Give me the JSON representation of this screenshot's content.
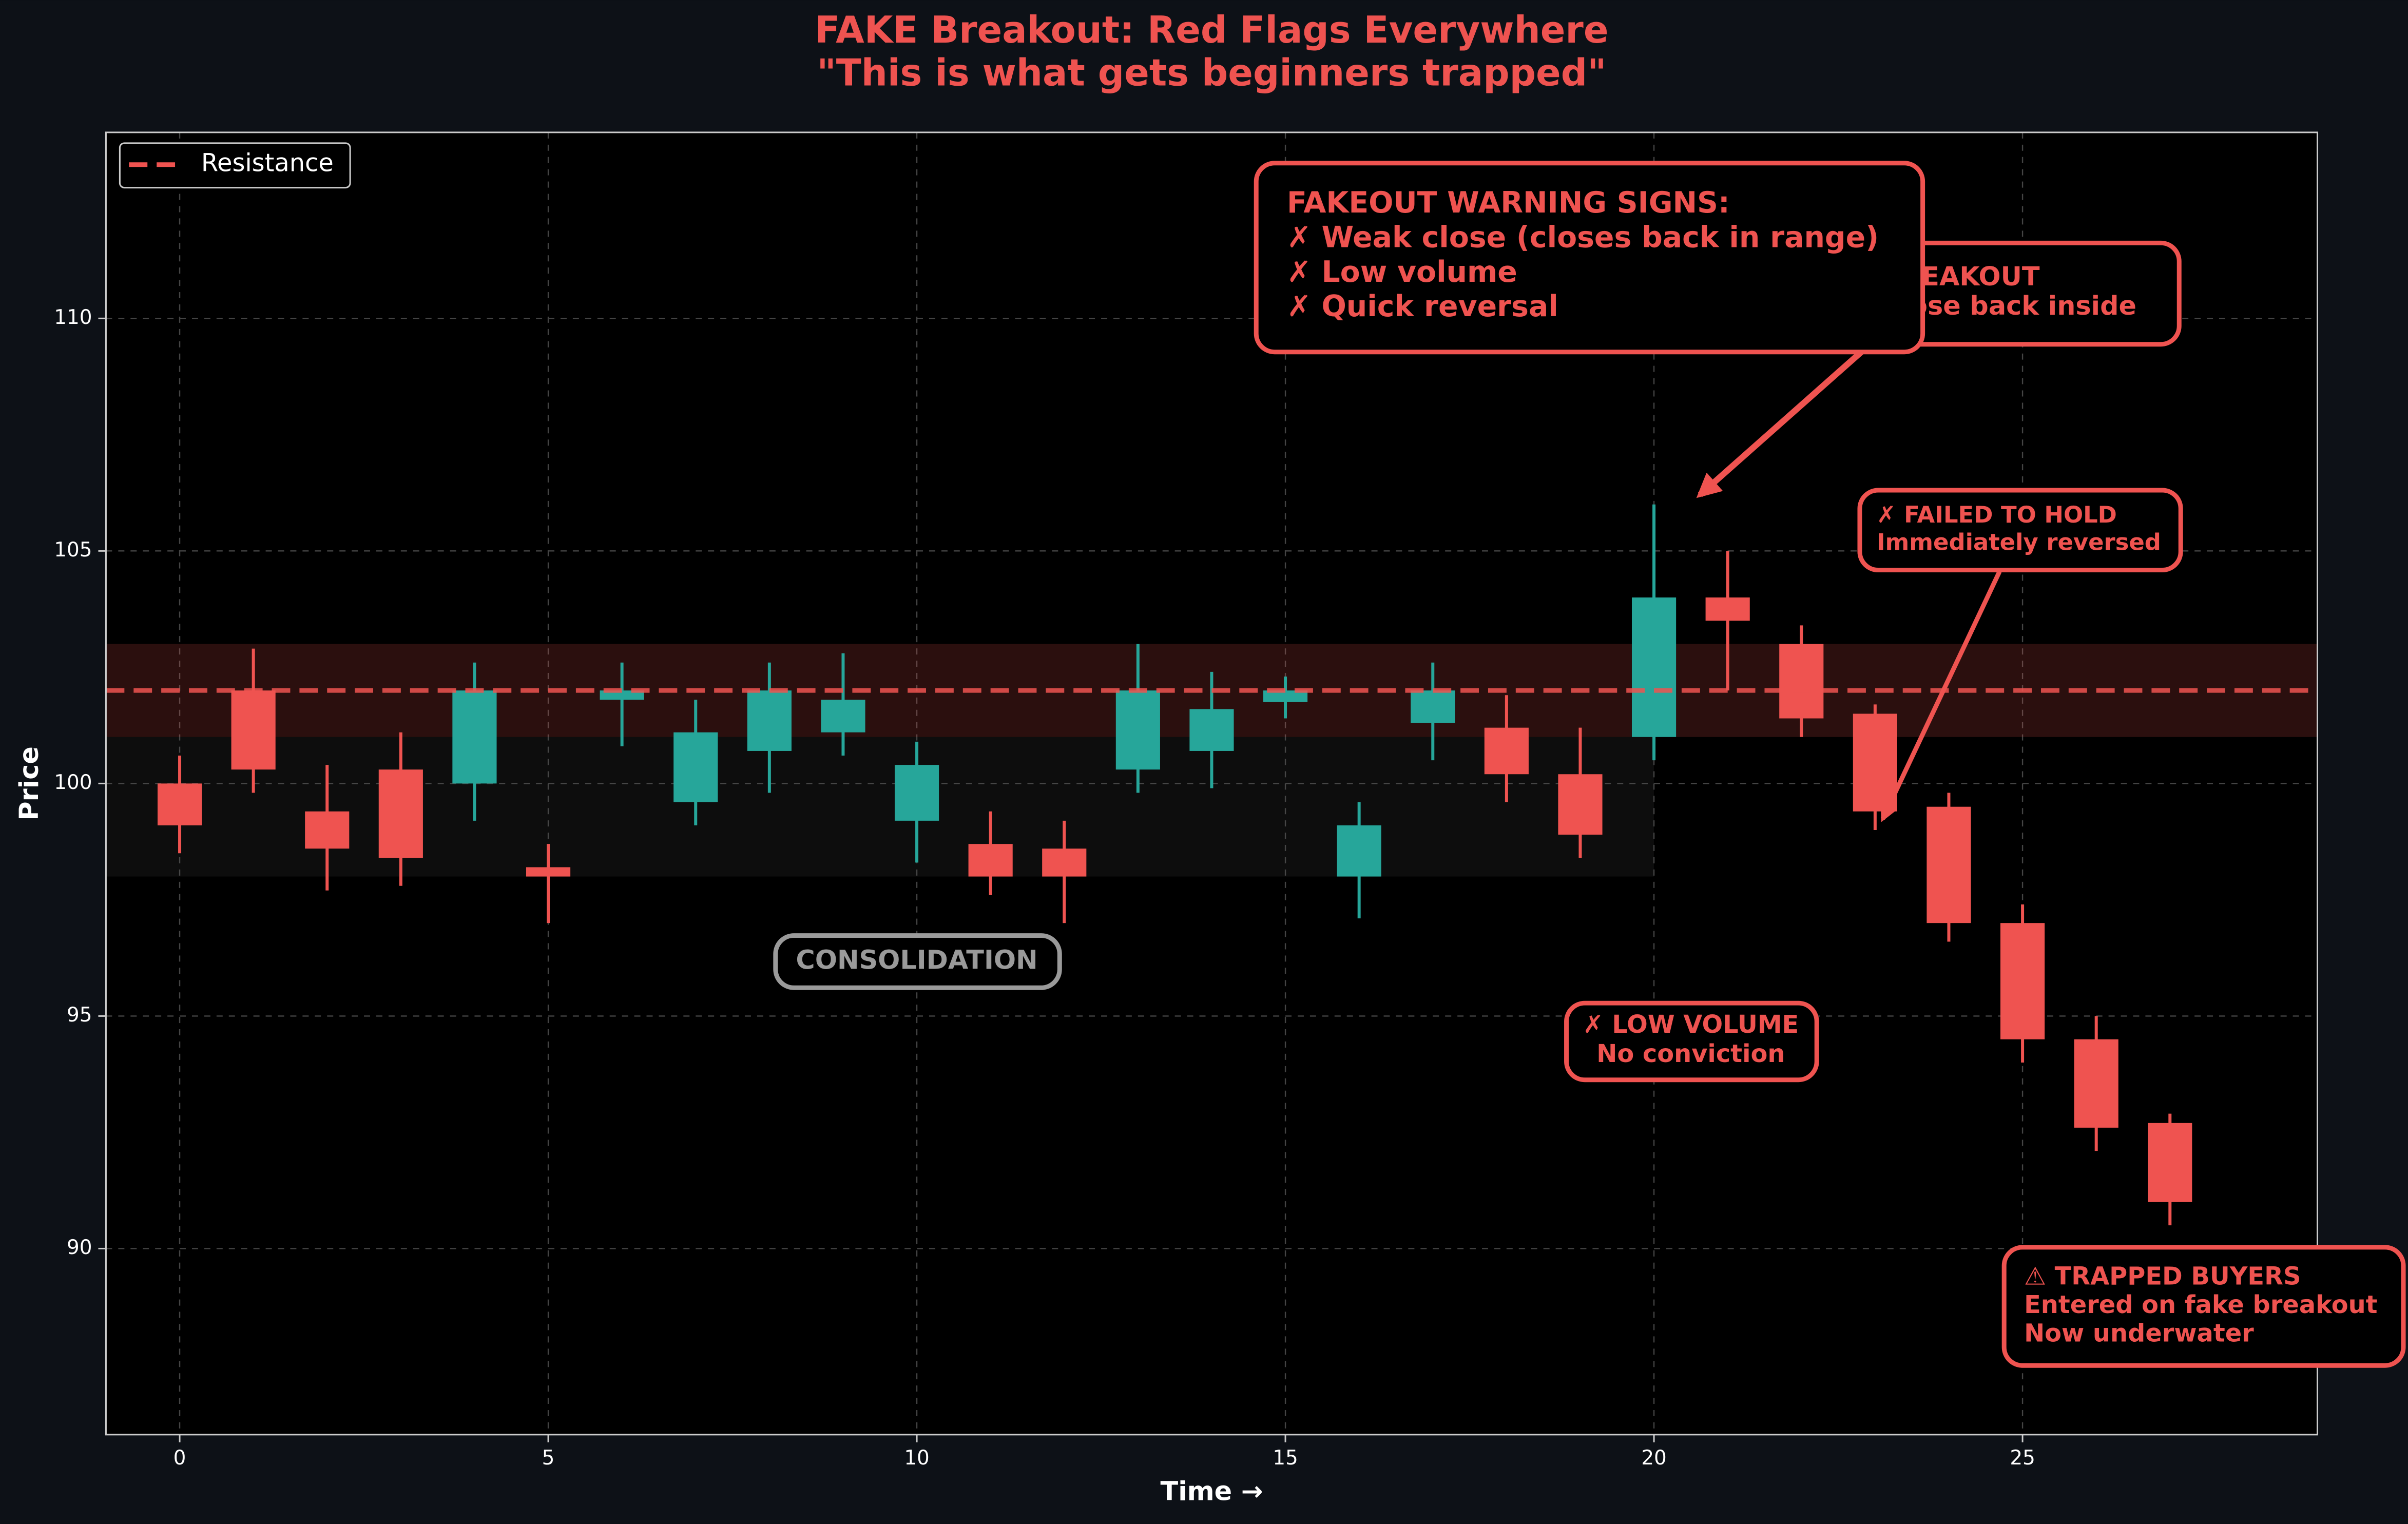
{
  "chart_data": {
    "type": "candlestick",
    "title": "FAKE Breakout: Red Flags Everywhere",
    "subtitle": "\"This is what gets beginners trapped\"",
    "xlabel": "Time →",
    "ylabel": "Price",
    "x": [
      0,
      1,
      2,
      3,
      4,
      5,
      6,
      7,
      8,
      9,
      10,
      11,
      12,
      13,
      14,
      15,
      16,
      17,
      18,
      19,
      20,
      21,
      22,
      23,
      24,
      25,
      26,
      27
    ],
    "open": [
      100.0,
      102.0,
      99.4,
      100.3,
      100.0,
      98.2,
      101.8,
      99.6,
      100.7,
      101.1,
      99.2,
      98.7,
      98.6,
      100.3,
      100.7,
      101.75,
      98.0,
      101.3,
      101.2,
      100.2,
      101.0,
      104.0,
      103.0,
      101.5,
      99.5,
      97.0,
      94.5,
      92.7
    ],
    "high": [
      100.6,
      102.9,
      100.4,
      101.1,
      102.6,
      98.7,
      102.6,
      101.8,
      102.6,
      102.8,
      100.9,
      99.4,
      99.2,
      103.0,
      102.4,
      102.3,
      99.6,
      102.6,
      101.9,
      101.2,
      106.0,
      105.0,
      103.4,
      101.7,
      99.8,
      97.4,
      95.0,
      92.9
    ],
    "low": [
      98.5,
      99.8,
      97.7,
      97.8,
      99.2,
      97.0,
      100.8,
      99.1,
      99.8,
      100.6,
      98.3,
      97.6,
      97.0,
      99.8,
      99.9,
      101.4,
      97.1,
      100.5,
      99.6,
      98.4,
      100.5,
      102.0,
      101.0,
      99.0,
      96.6,
      94.0,
      92.1,
      90.5
    ],
    "close": [
      99.1,
      100.3,
      98.6,
      98.4,
      102.0,
      98.0,
      102.0,
      101.1,
      102.0,
      101.8,
      100.4,
      98.0,
      98.0,
      102.0,
      101.6,
      102.0,
      99.1,
      102.0,
      100.2,
      98.9,
      104.0,
      103.5,
      101.4,
      99.4,
      97.0,
      94.5,
      92.6,
      91.0
    ],
    "up_color": "#26a69a",
    "down_color": "#ef5350",
    "xlim": [
      -1,
      29
    ],
    "ylim": [
      86,
      114
    ],
    "xticks": [
      0,
      5,
      10,
      15,
      20,
      25
    ],
    "yticks": [
      90,
      95,
      100,
      105,
      110
    ],
    "grid": true,
    "legend": "upper left",
    "resistance": {
      "name": "Resistance",
      "value": 102,
      "color": "#ef5350"
    },
    "zones": [
      {
        "y": [
          101,
          103
        ],
        "color": "#ef5350"
      },
      {
        "x": [
          -1,
          20
        ],
        "y": [
          98,
          101
        ],
        "color": "#555555"
      }
    ],
    "annotations": [
      {
        "lines": [
          "✗ BREAKOUT",
          "✗ Close back inside"
        ]
      },
      {
        "lines": [
          "FAKEOUT WARNING SIGNS:",
          "✗ Weak close (closes back in range)",
          "✗ Low volume",
          "✗ Quick reversal"
        ]
      },
      {
        "lines": [
          "✗ FAILED TO HOLD",
          "Immediately reversed"
        ]
      },
      {
        "lines": [
          "✗ LOW VOLUME",
          "No conviction"
        ]
      },
      {
        "lines": [
          "CONSOLIDATION"
        ]
      },
      {
        "lines": [
          "⚠ TRAPPED BUYERS",
          "Entered on fake breakout",
          "Now underwater"
        ]
      }
    ]
  }
}
